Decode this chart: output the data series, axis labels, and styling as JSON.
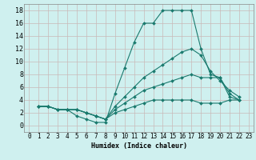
{
  "xlabel": "Humidex (Indice chaleur)",
  "xlim": [
    -0.5,
    23.5
  ],
  "ylim": [
    -1,
    19
  ],
  "xticks": [
    0,
    1,
    2,
    3,
    4,
    5,
    6,
    7,
    8,
    9,
    10,
    11,
    12,
    13,
    14,
    15,
    16,
    17,
    18,
    19,
    20,
    21,
    22,
    23
  ],
  "yticks": [
    0,
    2,
    4,
    6,
    8,
    10,
    12,
    14,
    16,
    18
  ],
  "bg_color": "#cff0ef",
  "grid_color": "#c9b8b8",
  "line_color": "#1a7a6e",
  "series": [
    [
      3.0,
      3.0,
      2.5,
      2.5,
      1.5,
      1.0,
      0.5,
      0.5,
      5.0,
      9.0,
      13.0,
      16.0,
      16.0,
      18.0,
      18.0,
      18.0,
      18.0,
      12.0,
      8.0,
      7.5,
      5.0,
      4.0
    ],
    [
      3.0,
      3.0,
      2.5,
      2.5,
      2.5,
      2.0,
      1.5,
      1.0,
      3.0,
      4.5,
      6.0,
      7.5,
      8.5,
      9.5,
      10.5,
      11.5,
      12.0,
      11.0,
      8.5,
      7.0,
      5.5,
      4.5
    ],
    [
      3.0,
      3.0,
      2.5,
      2.5,
      2.5,
      2.0,
      1.5,
      1.0,
      2.5,
      3.5,
      4.5,
      5.5,
      6.0,
      6.5,
      7.0,
      7.5,
      8.0,
      7.5,
      7.5,
      7.5,
      4.5,
      4.0
    ],
    [
      3.0,
      3.0,
      2.5,
      2.5,
      2.5,
      2.0,
      1.5,
      1.0,
      2.0,
      2.5,
      3.0,
      3.5,
      4.0,
      4.0,
      4.0,
      4.0,
      4.0,
      3.5,
      3.5,
      3.5,
      4.0,
      4.0
    ]
  ],
  "x_start": 1,
  "tick_fontsize": 5.5,
  "xlabel_fontsize": 6.0
}
